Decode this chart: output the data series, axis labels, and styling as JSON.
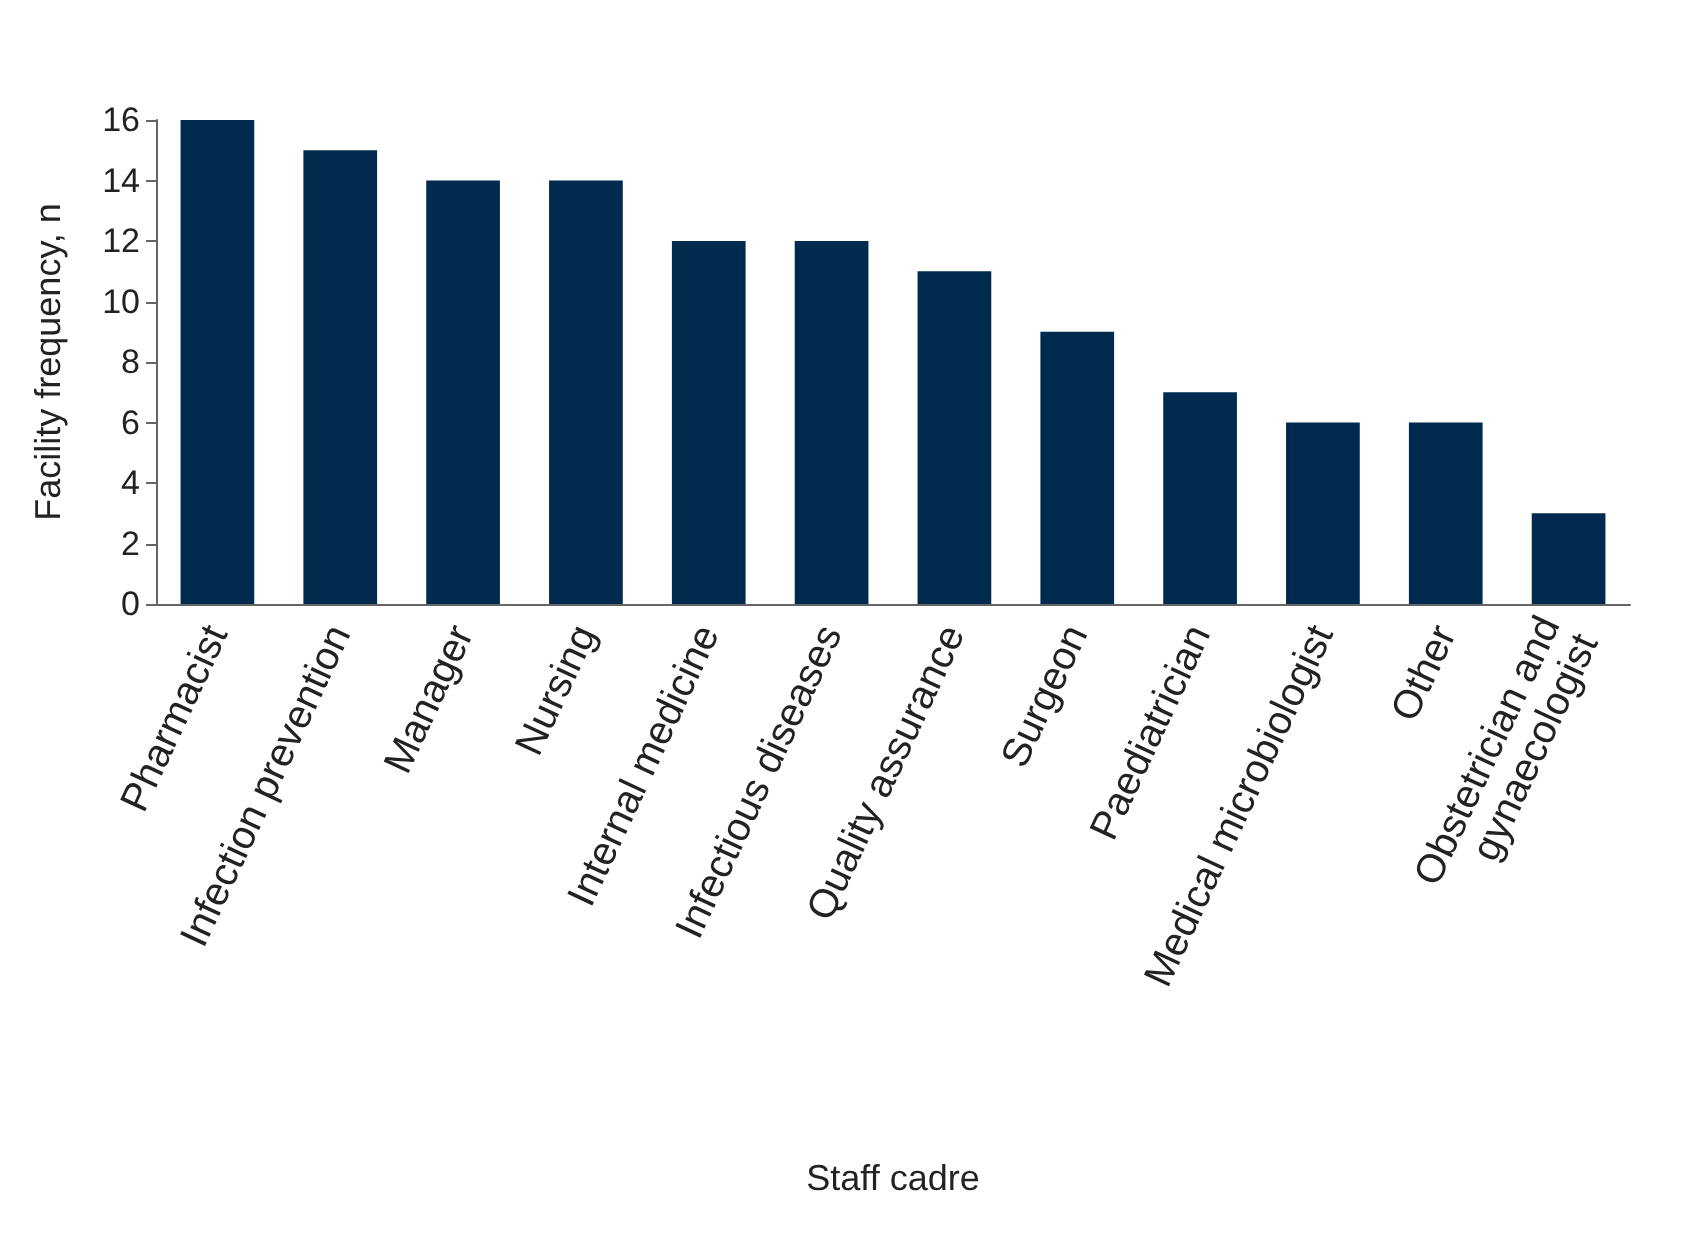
{
  "chart_data": {
    "type": "bar",
    "xlabel": "Staff cadre",
    "ylabel": "Facility frequency, n",
    "categories": [
      "Pharmacist",
      "Infection prevention",
      "Manager",
      "Nursing",
      "Internal medicine",
      "Infectious diseases",
      "Quality assurance",
      "Surgeon",
      "Paediatrician",
      "Medical microbiologist",
      "Other",
      "Obstetrician and gynaecologist"
    ],
    "values": [
      16,
      15,
      14,
      14,
      12,
      12,
      11,
      9,
      7,
      6,
      6,
      3
    ],
    "color": "#002a4e",
    "ylim": [
      0,
      16
    ],
    "yticks": [
      0,
      2,
      4,
      6,
      8,
      10,
      12,
      14,
      16
    ],
    "grid": false
  }
}
